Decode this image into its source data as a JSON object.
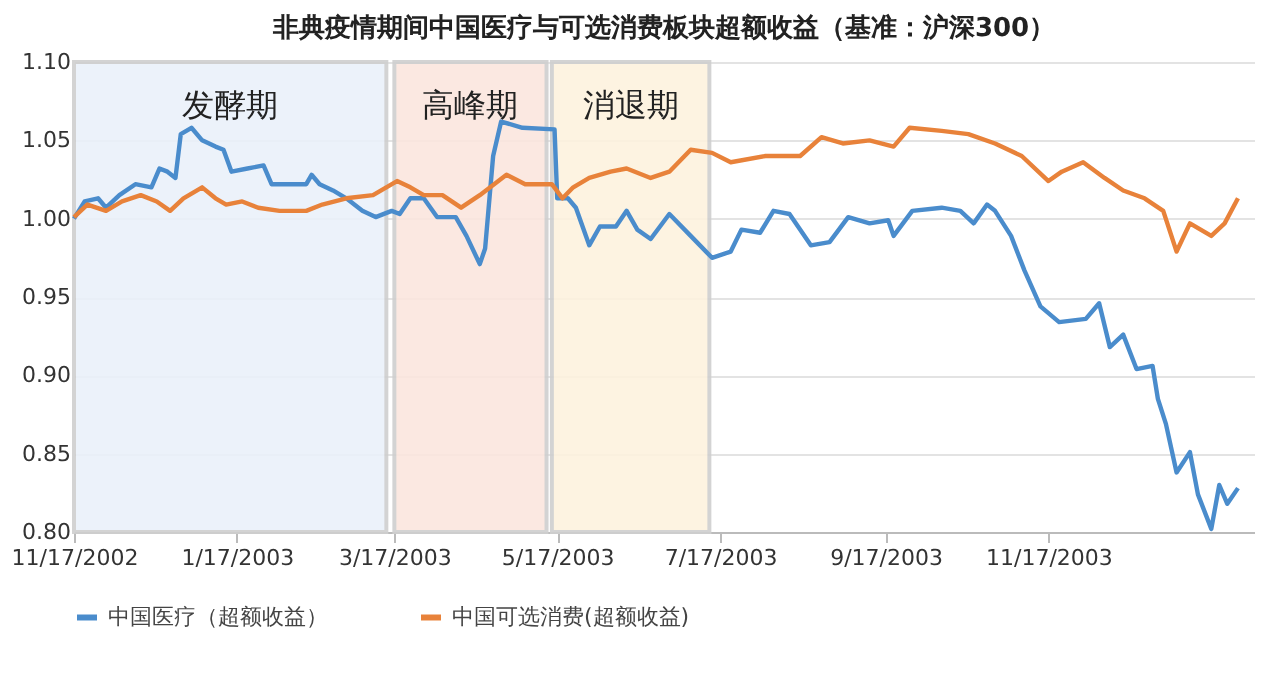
{
  "chart_data": {
    "type": "line",
    "title": "非典疫情期间中国医疗与可选消费板块超额收益（基准：沪深300）",
    "xlim": [
      "2002-11-17",
      "2004-02-02"
    ],
    "xticks": [
      {
        "value": "2002-11-17",
        "label": "11/17/2002"
      },
      {
        "value": "2003-01-17",
        "label": "1/17/2003"
      },
      {
        "value": "2003-03-17",
        "label": "3/17/2003"
      },
      {
        "value": "2003-05-17",
        "label": "5/17/2003"
      },
      {
        "value": "2003-07-17",
        "label": "7/17/2003"
      },
      {
        "value": "2003-09-17",
        "label": "9/17/2003"
      },
      {
        "value": "2003-11-17",
        "label": "11/17/2003"
      }
    ],
    "ylim": [
      0.8,
      1.1
    ],
    "yticks": [
      {
        "value": 0.8,
        "label": "0.80"
      },
      {
        "value": 0.85,
        "label": "0.85"
      },
      {
        "value": 0.9,
        "label": "0.90"
      },
      {
        "value": 0.95,
        "label": "0.95"
      },
      {
        "value": 1.0,
        "label": "1.00"
      },
      {
        "value": 1.05,
        "label": "1.05"
      },
      {
        "value": 1.1,
        "label": "1.10"
      }
    ],
    "grid": "y",
    "legend": "bottom",
    "marker": "none",
    "line_style": "solid",
    "bands": [
      {
        "axis": "x",
        "from": "2002-11-17",
        "to": "2003-03-14",
        "label": "发酵期",
        "color": "#eaf1fa"
      },
      {
        "axis": "x",
        "from": "2003-03-17",
        "to": "2003-05-13",
        "label": "高峰期",
        "color": "#fbe6de"
      },
      {
        "axis": "x",
        "from": "2003-05-15",
        "to": "2003-07-13",
        "label": "消退期",
        "color": "#fdf2de"
      }
    ],
    "series": [
      {
        "name": "中国医疗（超额收益）",
        "color": "#4a8ccc",
        "x": [
          "2002-11-17",
          "2002-11-21",
          "2002-11-26",
          "2002-11-29",
          "2002-12-04",
          "2002-12-10",
          "2002-12-16",
          "2002-12-19",
          "2002-12-22",
          "2002-12-25",
          "2002-12-27",
          "2002-12-31",
          "2003-01-04",
          "2003-01-09",
          "2003-01-12",
          "2003-01-15",
          "2003-01-21",
          "2003-01-27",
          "2003-01-30",
          "2003-02-12",
          "2003-02-14",
          "2003-02-17",
          "2003-02-22",
          "2003-02-27",
          "2003-03-05",
          "2003-03-10",
          "2003-03-16",
          "2003-03-19",
          "2003-03-23",
          "2003-03-28",
          "2003-04-02",
          "2003-04-09",
          "2003-04-13",
          "2003-04-18",
          "2003-04-20",
          "2003-04-23",
          "2003-04-26",
          "2003-05-04",
          "2003-05-16",
          "2003-05-17",
          "2003-05-21",
          "2003-05-24",
          "2003-05-29",
          "2003-06-02",
          "2003-06-08",
          "2003-06-12",
          "2003-06-16",
          "2003-06-21",
          "2003-06-28",
          "2003-07-06",
          "2003-07-14",
          "2003-07-21",
          "2003-07-25",
          "2003-08-01",
          "2003-08-06",
          "2003-08-12",
          "2003-08-20",
          "2003-08-27",
          "2003-09-03",
          "2003-09-11",
          "2003-09-18",
          "2003-09-20",
          "2003-09-27",
          "2003-10-08",
          "2003-10-15",
          "2003-10-20",
          "2003-10-25",
          "2003-10-28",
          "2003-11-03",
          "2003-11-08",
          "2003-11-14",
          "2003-11-21",
          "2003-12-01",
          "2003-12-06",
          "2003-12-10",
          "2003-12-15",
          "2003-12-20",
          "2003-12-26",
          "2003-12-28",
          "2003-12-31",
          "2004-01-04",
          "2004-01-09",
          "2004-01-12",
          "2004-01-17",
          "2004-01-20",
          "2004-01-23",
          "2004-01-27"
        ],
        "values": [
          1.0,
          1.011,
          1.013,
          1.007,
          1.015,
          1.022,
          1.02,
          1.032,
          1.03,
          1.026,
          1.054,
          1.058,
          1.05,
          1.046,
          1.044,
          1.03,
          1.032,
          1.034,
          1.022,
          1.022,
          1.028,
          1.022,
          1.018,
          1.013,
          1.005,
          1.001,
          1.005,
          1.003,
          1.013,
          1.013,
          1.001,
          1.001,
          0.989,
          0.971,
          0.981,
          1.04,
          1.062,
          1.058,
          1.057,
          1.013,
          1.013,
          1.007,
          0.983,
          0.995,
          0.995,
          1.005,
          0.993,
          0.987,
          1.003,
          0.989,
          0.975,
          0.979,
          0.993,
          0.991,
          1.005,
          1.003,
          0.983,
          0.985,
          1.001,
          0.997,
          0.999,
          0.989,
          1.005,
          1.007,
          1.005,
          0.997,
          1.009,
          1.005,
          0.989,
          0.967,
          0.944,
          0.934,
          0.936,
          0.946,
          0.918,
          0.926,
          0.904,
          0.906,
          0.885,
          0.869,
          0.838,
          0.851,
          0.824,
          0.802,
          0.83,
          0.818,
          0.828
        ]
      },
      {
        "name": "中国可选消费(超额收益)",
        "color": "#e8823a",
        "x": [
          "2002-11-17",
          "2002-11-22",
          "2002-11-29",
          "2002-12-05",
          "2002-12-12",
          "2002-12-18",
          "2002-12-23",
          "2002-12-28",
          "2003-01-04",
          "2003-01-09",
          "2003-01-13",
          "2003-01-19",
          "2003-01-25",
          "2003-02-02",
          "2003-02-12",
          "2003-02-18",
          "2003-02-27",
          "2003-03-09",
          "2003-03-18",
          "2003-03-23",
          "2003-03-28",
          "2003-04-04",
          "2003-04-11",
          "2003-04-18",
          "2003-04-28",
          "2003-05-05",
          "2003-05-15",
          "2003-05-19",
          "2003-05-23",
          "2003-05-29",
          "2003-06-06",
          "2003-06-12",
          "2003-06-21",
          "2003-06-28",
          "2003-07-06",
          "2003-07-14",
          "2003-07-21",
          "2003-08-03",
          "2003-08-16",
          "2003-08-24",
          "2003-09-01",
          "2003-09-11",
          "2003-09-20",
          "2003-09-26",
          "2003-10-08",
          "2003-10-18",
          "2003-10-28",
          "2003-11-07",
          "2003-11-17",
          "2003-11-22",
          "2003-11-30",
          "2003-12-08",
          "2003-12-15",
          "2003-12-23",
          "2003-12-30",
          "2004-01-04",
          "2004-01-09",
          "2004-01-17",
          "2004-01-22",
          "2004-01-27"
        ],
        "values": [
          1.001,
          1.009,
          1.005,
          1.011,
          1.015,
          1.011,
          1.005,
          1.013,
          1.02,
          1.013,
          1.009,
          1.011,
          1.007,
          1.005,
          1.005,
          1.009,
          1.013,
          1.015,
          1.024,
          1.02,
          1.015,
          1.015,
          1.007,
          1.015,
          1.028,
          1.022,
          1.022,
          1.013,
          1.02,
          1.026,
          1.03,
          1.032,
          1.026,
          1.03,
          1.044,
          1.042,
          1.036,
          1.04,
          1.04,
          1.052,
          1.048,
          1.05,
          1.046,
          1.058,
          1.056,
          1.054,
          1.048,
          1.04,
          1.024,
          1.03,
          1.036,
          1.026,
          1.018,
          1.013,
          1.005,
          0.979,
          0.997,
          0.989,
          0.997,
          1.013
        ]
      }
    ]
  }
}
